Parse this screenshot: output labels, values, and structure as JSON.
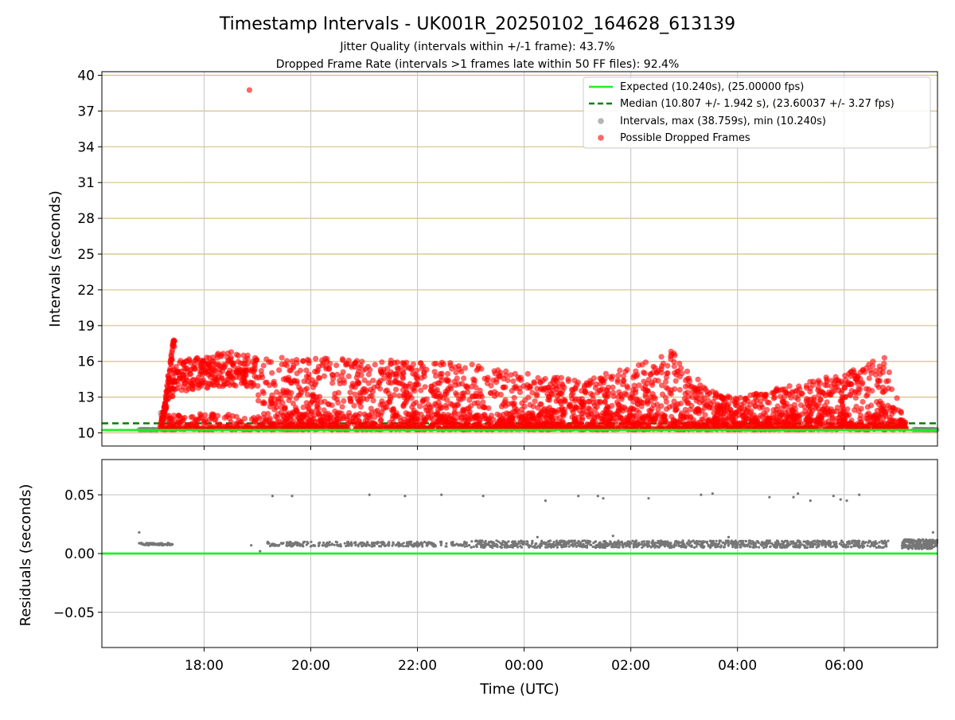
{
  "title": "Timestamp Intervals - UK001R_20250102_164628_613139",
  "subtitle_1": "Jitter Quality (intervals within +/-1 frame): 43.7%",
  "subtitle_2": "Dropped Frame Rate (intervals >1 frames late within 50 FF files): 92.4%",
  "colors": {
    "expected_line": "#22ee22",
    "median_line": "#008000",
    "intervals_points": "#777777",
    "dropped_points": "#ff0000",
    "horizontal_grid": "#d4c084",
    "vertical_grid": "#cccccc"
  },
  "chart_data": [
    {
      "type": "scatter",
      "ylabel": "Intervals (seconds)",
      "xlim": [
        "16:05",
        "07:45"
      ],
      "ylim": [
        8.9,
        40.3
      ],
      "yticks": [
        "10",
        "13",
        "16",
        "19",
        "22",
        "25",
        "28",
        "31",
        "34",
        "37",
        "40"
      ],
      "xticks": [
        "18:00",
        "20:00",
        "22:00",
        "00:00",
        "02:00",
        "04:00",
        "06:00"
      ],
      "grid": true,
      "legend_position": "top-right",
      "legend": [
        "Expected (10.240s), (25.00000 fps)",
        "Median (10.807 +/- 1.942 s), (23.60037 +/- 3.27 fps)",
        "Intervals, max (38.759s), min (10.240s)",
        "Possible Dropped Frames"
      ],
      "expected_interval": 10.24,
      "median_interval": 10.807,
      "max_interval": 38.759,
      "min_interval": 10.24,
      "time_range": [
        "16:47",
        "07:45"
      ],
      "outlier": {
        "x": "18:51",
        "y": 38.76
      },
      "dropped_envelope": [
        {
          "x": "17:10",
          "y": 10.3
        },
        {
          "x": "17:20",
          "y": 14.5
        },
        {
          "x": "17:30",
          "y": 16.0
        },
        {
          "x": "18:00",
          "y": 16.5
        },
        {
          "x": "18:30",
          "y": 16.8
        },
        {
          "x": "19:00",
          "y": 16.5
        },
        {
          "x": "20:00",
          "y": 16.3
        },
        {
          "x": "21:00",
          "y": 16.2
        },
        {
          "x": "22:00",
          "y": 16.0
        },
        {
          "x": "23:00",
          "y": 15.8
        },
        {
          "x": "00:00",
          "y": 15.0
        },
        {
          "x": "01:00",
          "y": 14.5
        },
        {
          "x": "02:00",
          "y": 15.5
        },
        {
          "x": "02:45",
          "y": 17.0
        },
        {
          "x": "03:30",
          "y": 13.5
        },
        {
          "x": "04:00",
          "y": 13.0
        },
        {
          "x": "05:00",
          "y": 14.0
        },
        {
          "x": "06:00",
          "y": 15.0
        },
        {
          "x": "06:45",
          "y": 16.5
        },
        {
          "x": "07:10",
          "y": 10.3
        }
      ]
    },
    {
      "type": "scatter",
      "xlabel": "Time (UTC)",
      "ylabel": "Residuals (seconds)",
      "xlim": [
        "16:05",
        "07:45"
      ],
      "ylim": [
        -0.08,
        0.08
      ],
      "yticks": [
        "−0.05",
        "0.00",
        "0.05"
      ],
      "xticks": [
        "18:00",
        "20:00",
        "22:00",
        "00:00",
        "02:00",
        "04:00",
        "06:00"
      ],
      "grid": true,
      "baseline": 0.0,
      "residual_band": [
        {
          "x": "16:47",
          "y": 0.008
        },
        {
          "x": "17:25",
          "y": 0.008
        },
        {
          "x": "19:00",
          "y": 0.007
        },
        {
          "x": "21:00",
          "y": 0.008
        },
        {
          "x": "23:00",
          "y": 0.008
        },
        {
          "x": "01:00",
          "y": 0.008
        },
        {
          "x": "03:00",
          "y": 0.008
        },
        {
          "x": "05:00",
          "y": 0.008
        },
        {
          "x": "07:45",
          "y": 0.008
        }
      ],
      "residual_points": [
        {
          "x": "16:47",
          "y": 0.018
        },
        {
          "x": "18:53",
          "y": 0.007
        },
        {
          "x": "19:03",
          "y": 0.002
        },
        {
          "x": "19:17",
          "y": 0.049
        },
        {
          "x": "19:39",
          "y": 0.049
        },
        {
          "x": "21:06",
          "y": 0.05
        },
        {
          "x": "21:46",
          "y": 0.049
        },
        {
          "x": "22:27",
          "y": 0.05
        },
        {
          "x": "23:14",
          "y": 0.049
        },
        {
          "x": "00:24",
          "y": 0.045
        },
        {
          "x": "01:01",
          "y": 0.049
        },
        {
          "x": "01:23",
          "y": 0.049
        },
        {
          "x": "01:29",
          "y": 0.047
        },
        {
          "x": "02:20",
          "y": 0.047
        },
        {
          "x": "03:19",
          "y": 0.05
        },
        {
          "x": "03:32",
          "y": 0.051
        },
        {
          "x": "04:36",
          "y": 0.048
        },
        {
          "x": "05:03",
          "y": 0.048
        },
        {
          "x": "05:08",
          "y": 0.051
        },
        {
          "x": "05:22",
          "y": 0.045
        },
        {
          "x": "05:48",
          "y": 0.049
        },
        {
          "x": "05:56",
          "y": 0.046
        },
        {
          "x": "06:03",
          "y": 0.045
        },
        {
          "x": "06:17",
          "y": 0.05
        },
        {
          "x": "00:15",
          "y": 0.014
        },
        {
          "x": "01:40",
          "y": 0.015
        },
        {
          "x": "03:50",
          "y": 0.014
        },
        {
          "x": "07:40",
          "y": 0.018
        }
      ]
    }
  ]
}
